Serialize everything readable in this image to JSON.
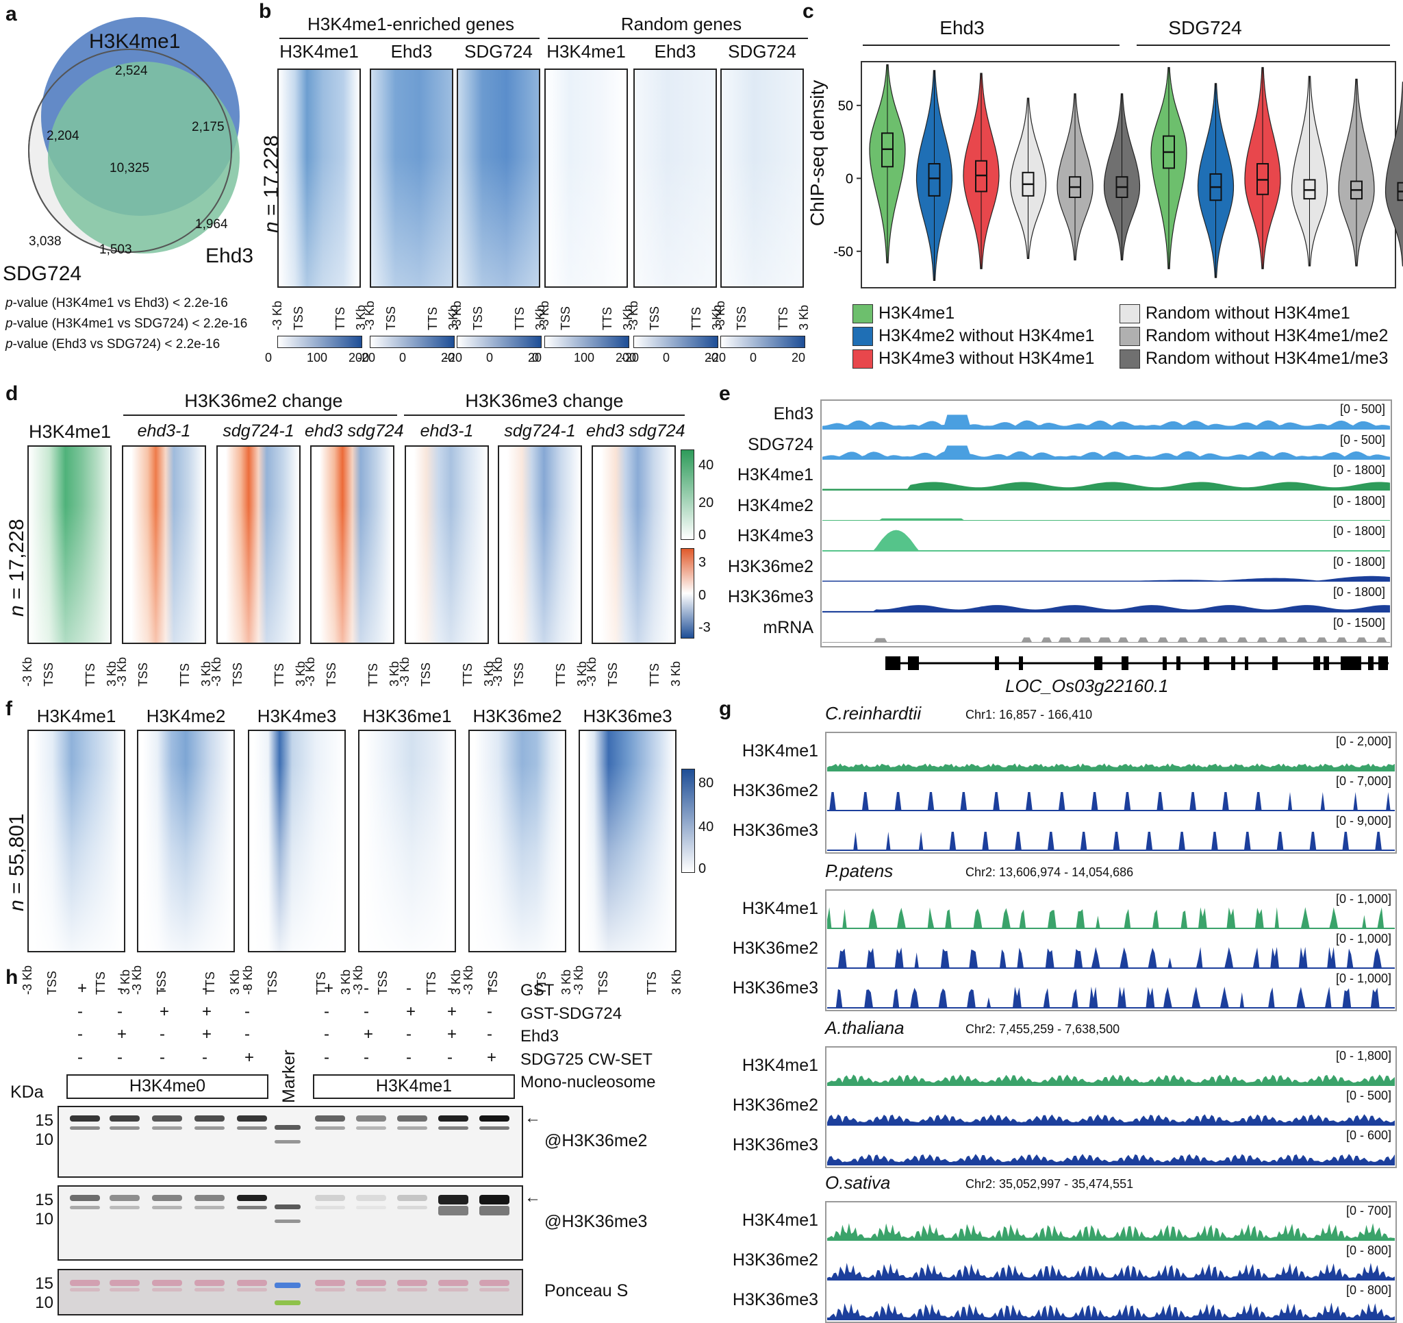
{
  "panel_labels": {
    "a": "a",
    "b": "b",
    "c": "c",
    "d": "d",
    "e": "e",
    "f": "f",
    "g": "g",
    "h": "h"
  },
  "venn": {
    "set_h3k4me1": "H3K4me1",
    "set_ehd3": "Ehd3",
    "set_sdg724": "SDG724",
    "n_2524": "2,524",
    "n_2204": "2,204",
    "n_2175": "2,175",
    "n_10325": "10,325",
    "n_3038": "3,038",
    "n_1964": "1,964",
    "n_1503": "1,503",
    "p1_label": "p",
    "p1_text": "-value (H3K4me1 vs Ehd3) < 2.2e-16",
    "p2_label": "p",
    "p2_text": "-value (H3K4me1 vs SDG724) < 2.2e-16",
    "p3_label": "p",
    "p3_text": "-value (Ehd3 vs SDG724) < 2.2e-16",
    "colors": {
      "h3k4me1": "#4a78bf",
      "ehd3": "#7fc3a0",
      "overlap": "#5c9fa2"
    }
  },
  "panel_b": {
    "group1": "H3K4me1-enriched genes",
    "group2": "Random genes",
    "cols": [
      "H3K4me1",
      "Ehd3",
      "SDG724",
      "H3K4me1",
      "Ehd3",
      "SDG724"
    ],
    "n_prefix": "n",
    "n_value": " = 17,228",
    "xt": [
      "-3 Kb",
      "TSS",
      "TTS",
      "3 Kb"
    ],
    "scales": [
      [
        "0",
        "100",
        "200"
      ],
      [
        "-20",
        "0",
        "20"
      ],
      [
        "-20",
        "0",
        "20"
      ],
      [
        "0",
        "100",
        "200"
      ],
      [
        "-20",
        "0",
        "20"
      ],
      [
        "-20",
        "0",
        "20"
      ]
    ]
  },
  "panel_c": {
    "group1": "Ehd3",
    "group2": "SDG724",
    "ylabel": "ChIP-seq density",
    "yticks": [
      "50",
      "0",
      "-50"
    ],
    "legend": [
      {
        "label": "H3K4me1",
        "color": "#6dbf6d"
      },
      {
        "label": "H3K4me2 without H3K4me1",
        "color": "#1f6fb5"
      },
      {
        "label": "H3K4me3 without H3K4me1",
        "color": "#e8474c"
      },
      {
        "label": "Random without H3K4me1",
        "color": "#e6e6e6"
      },
      {
        "label": "Random without H3K4me1/me2",
        "color": "#b0b0b0"
      },
      {
        "label": "Random without H3K4me1/me3",
        "color": "#707070"
      }
    ],
    "chart_data": {
      "type": "violin",
      "title": "",
      "ylabel": "ChIP-seq density",
      "ylim": [
        -75,
        80
      ],
      "groups": [
        "Ehd3",
        "SDG724"
      ],
      "series": [
        "H3K4me1",
        "H3K4me2 without H3K4me1",
        "H3K4me3 without H3K4me1",
        "Random without H3K4me1",
        "Random without H3K4me1/me2",
        "Random without H3K4me1/me3"
      ],
      "medians": {
        "Ehd3": [
          20,
          0,
          2,
          -4,
          -6,
          -6
        ],
        "SDG724": [
          18,
          -6,
          -1,
          -8,
          -8,
          -9
        ]
      },
      "q1": {
        "Ehd3": [
          8,
          -12,
          -9,
          -12,
          -13,
          -13
        ],
        "SDG724": [
          7,
          -15,
          -11,
          -14,
          -14,
          -15
        ]
      },
      "q3": {
        "Ehd3": [
          31,
          10,
          12,
          4,
          1,
          1
        ],
        "SDG724": [
          29,
          3,
          10,
          -1,
          -2,
          -3
        ]
      },
      "min": {
        "Ehd3": [
          -58,
          -70,
          -62,
          -55,
          -56,
          -56
        ],
        "SDG724": [
          -62,
          -68,
          -62,
          -60,
          -60,
          -60
        ]
      },
      "max": {
        "Ehd3": [
          78,
          74,
          72,
          55,
          58,
          58
        ],
        "SDG724": [
          76,
          65,
          76,
          70,
          68,
          66
        ]
      }
    }
  },
  "panel_d": {
    "first": "H3K4me1",
    "change2": "H3K36me2 change",
    "change3": "H3K36me3 change",
    "cols": [
      "ehd3-1",
      "sdg724-1",
      "ehd3 sdg724",
      "ehd3-1",
      "sdg724-1",
      "ehd3 sdg724"
    ],
    "n_prefix": "n",
    "n_value": " = 17,228",
    "green_ticks": [
      "40",
      "20",
      "0"
    ],
    "div_ticks": [
      "3",
      "0",
      "-3"
    ],
    "xt": [
      "-3 Kb",
      "TSS",
      "TTS",
      "3 Kb"
    ]
  },
  "panel_e": {
    "tracks": [
      {
        "label": "Ehd3",
        "range": "[0 - 500]",
        "color": "#4a9fe0"
      },
      {
        "label": "SDG724",
        "range": "[0 - 500]",
        "color": "#4a9fe0"
      },
      {
        "label": "H3K4me1",
        "range": "[0 - 1800]",
        "color": "#2e9b5a"
      },
      {
        "label": "H3K4me2",
        "range": "[0 - 1800]",
        "color": "#48b878"
      },
      {
        "label": "H3K4me3",
        "range": "[0 - 1800]",
        "color": "#55c48a"
      },
      {
        "label": "H3K36me2",
        "range": "[0 - 1800]",
        "color": "#1b3f9a"
      },
      {
        "label": "H3K36me3",
        "range": "[0 - 1800]",
        "color": "#1b3f9a"
      },
      {
        "label": "mRNA",
        "range": "[0 - 1500]",
        "color": "#9a9a9a"
      }
    ],
    "gene": "LOC_Os03g22160.1"
  },
  "panel_f": {
    "cols": [
      "H3K4me1",
      "H3K4me2",
      "H3K4me3",
      "H3K36me1",
      "H3K36me2",
      "H3K36me3"
    ],
    "n_prefix": "n",
    "n_value": " = 55,801",
    "scale": [
      "80",
      "40",
      "0"
    ],
    "xt": [
      "-3 Kb",
      "TSS",
      "TTS",
      "3 Kb"
    ]
  },
  "panel_g": {
    "species": [
      {
        "name": "C.reinhardtii",
        "coord": "Chr1: 16,857 - 166,410",
        "ranges": [
          "[0 - 2,000]",
          "[0 - 7,000]",
          "[0 - 9,000]"
        ]
      },
      {
        "name": "P.patens",
        "coord": "Chr2: 13,606,974 - 14,054,686",
        "ranges": [
          "[0 - 1,000]",
          "[0 - 1,000]",
          "[0 - 1,000]"
        ]
      },
      {
        "name": "A.thaliana",
        "coord": "Chr2: 7,455,259 - 7,638,500",
        "ranges": [
          "[0 - 1,800]",
          "[0 - 500]",
          "[0 - 600]"
        ]
      },
      {
        "name": "O.sativa",
        "coord": "Chr2: 35,052,997 - 35,474,551",
        "ranges": [
          "[0 - 700]",
          "[0 - 800]",
          "[0 - 800]"
        ]
      }
    ],
    "marks": [
      "H3K4me1",
      "H3K36me2",
      "H3K36me3"
    ]
  },
  "panel_h": {
    "rows": [
      "GST",
      "GST-SDG724",
      "Ehd3",
      "SDG725 CW-SET",
      "Mono-nucleosome"
    ],
    "signs": [
      [
        "+",
        "-",
        "-",
        "-",
        "-",
        "+",
        "-",
        "-",
        "-",
        "-"
      ],
      [
        "-",
        "-",
        "+",
        "+",
        "-",
        "-",
        "-",
        "+",
        "+",
        "-"
      ],
      [
        "-",
        "+",
        "-",
        "+",
        "-",
        "-",
        "+",
        "-",
        "+",
        "-"
      ],
      [
        "-",
        "-",
        "-",
        "-",
        "+",
        "-",
        "-",
        "-",
        "-",
        "+"
      ]
    ],
    "group1": "H3K4me0",
    "group2": "H3K4me1",
    "marker": "Marker",
    "kda": "KDa",
    "mw": [
      "15",
      "10"
    ],
    "blots": [
      "@H3K36me2",
      "@H3K36me3",
      "Ponceau S"
    ]
  }
}
